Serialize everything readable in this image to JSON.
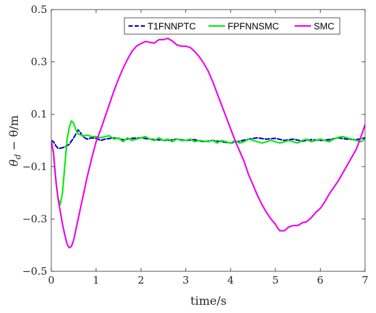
{
  "chart_data": {
    "type": "line",
    "title": "",
    "xlabel": "time/s",
    "ylabel_parts": [
      "θ",
      "d",
      " − θ/m"
    ],
    "xlim": [
      0,
      7
    ],
    "ylim": [
      -0.5,
      0.5
    ],
    "xticks": [
      0,
      1,
      2,
      3,
      4,
      5,
      6,
      7
    ],
    "xtick_labels": [
      "0",
      "1",
      "2",
      "3",
      "4",
      "5",
      "6",
      "7"
    ],
    "yticks": [
      -0.5,
      -0.3,
      -0.1,
      0.1,
      0.3,
      0.5
    ],
    "ytick_labels": [
      "−0.5",
      "−0.3",
      "−0.1",
      "0.1",
      "0.3",
      "0.5"
    ],
    "grid": false,
    "legend_position": "top-right",
    "series": [
      {
        "name": "T1FNNPTC",
        "color": "#0000cc",
        "style": "dashed",
        "points": [
          [
            0,
            0
          ],
          [
            0.05,
            -0.005
          ],
          [
            0.1,
            -0.02
          ],
          [
            0.15,
            -0.03
          ],
          [
            0.2,
            -0.03
          ],
          [
            0.3,
            -0.025
          ],
          [
            0.4,
            -0.015
          ],
          [
            0.5,
            0.01
          ],
          [
            0.6,
            0.04
          ],
          [
            0.65,
            0.03
          ],
          [
            0.7,
            0.015
          ],
          [
            0.8,
            0.005
          ],
          [
            0.9,
            0.01
          ],
          [
            1.0,
            0.008
          ],
          [
            1.1,
            0.0
          ],
          [
            1.2,
            0.005
          ],
          [
            1.4,
            0.01
          ],
          [
            1.6,
            0.003
          ],
          [
            1.8,
            0.008
          ],
          [
            2.0,
            0.01
          ],
          [
            2.2,
            0.005
          ],
          [
            2.4,
            0.002
          ],
          [
            2.6,
            0.0
          ],
          [
            2.8,
            0.005
          ],
          [
            3.0,
            0.0
          ],
          [
            3.2,
            0.003
          ],
          [
            3.4,
            -0.005
          ],
          [
            3.6,
            0.0
          ],
          [
            3.8,
            -0.005
          ],
          [
            4.0,
            -0.01
          ],
          [
            4.2,
            -0.003
          ],
          [
            4.4,
            0.005
          ],
          [
            4.6,
            0.01
          ],
          [
            4.8,
            0.005
          ],
          [
            5.0,
            0.008
          ],
          [
            5.2,
            0.0
          ],
          [
            5.4,
            0.005
          ],
          [
            5.6,
            -0.003
          ],
          [
            5.8,
            0.003
          ],
          [
            6.0,
            0.0
          ],
          [
            6.2,
            0.003
          ],
          [
            6.4,
            0.01
          ],
          [
            6.6,
            0.005
          ],
          [
            6.8,
            0.003
          ],
          [
            7.0,
            0.01
          ]
        ]
      },
      {
        "name": "FPFNNSMC",
        "color": "#00ee00",
        "style": "solid",
        "points": [
          [
            0,
            0
          ],
          [
            0.05,
            -0.05
          ],
          [
            0.1,
            -0.15
          ],
          [
            0.15,
            -0.22
          ],
          [
            0.2,
            -0.245
          ],
          [
            0.25,
            -0.2
          ],
          [
            0.3,
            -0.1
          ],
          [
            0.35,
            0.0
          ],
          [
            0.4,
            0.05
          ],
          [
            0.45,
            0.075
          ],
          [
            0.5,
            0.065
          ],
          [
            0.55,
            0.04
          ],
          [
            0.6,
            0.025
          ],
          [
            0.7,
            0.018
          ],
          [
            0.8,
            0.02
          ],
          [
            0.9,
            0.015
          ],
          [
            1.0,
            0.015
          ],
          [
            1.1,
            0.01
          ],
          [
            1.2,
            0.015
          ],
          [
            1.3,
            0.018
          ],
          [
            1.4,
            0.005
          ],
          [
            1.5,
            0.01
          ],
          [
            1.6,
            -0.005
          ],
          [
            1.7,
            0.01
          ],
          [
            1.8,
            0.0
          ],
          [
            1.9,
            0.005
          ],
          [
            2.0,
            0.01
          ],
          [
            2.1,
            0.015
          ],
          [
            2.2,
            0.005
          ],
          [
            2.3,
            0.0
          ],
          [
            2.4,
            0.01
          ],
          [
            2.5,
            0.0
          ],
          [
            2.6,
            0.005
          ],
          [
            2.7,
            -0.005
          ],
          [
            2.8,
            0.005
          ],
          [
            2.9,
            0.0
          ],
          [
            3.0,
            0.0
          ],
          [
            3.1,
            0.005
          ],
          [
            3.2,
            -0.005
          ],
          [
            3.3,
            0.0
          ],
          [
            3.4,
            -0.002
          ],
          [
            3.5,
            -0.005
          ],
          [
            3.6,
            0.0
          ],
          [
            3.7,
            -0.01
          ],
          [
            3.8,
            0.0
          ],
          [
            3.9,
            -0.005
          ],
          [
            4.0,
            -0.01
          ],
          [
            4.1,
            0.0
          ],
          [
            4.2,
            -0.01
          ],
          [
            4.3,
            -0.005
          ],
          [
            4.4,
            0.005
          ],
          [
            4.5,
            0.0
          ],
          [
            4.6,
            -0.005
          ],
          [
            4.7,
            -0.01
          ],
          [
            4.8,
            -0.005
          ],
          [
            4.9,
            0.0
          ],
          [
            5.0,
            -0.005
          ],
          [
            5.1,
            -0.01
          ],
          [
            5.2,
            -0.005
          ],
          [
            5.3,
            0.0
          ],
          [
            5.4,
            -0.005
          ],
          [
            5.5,
            -0.01
          ],
          [
            5.6,
            0.0
          ],
          [
            5.7,
            0.005
          ],
          [
            5.8,
            -0.005
          ],
          [
            5.9,
            0.0
          ],
          [
            6.0,
            0.005
          ],
          [
            6.1,
            0.0
          ],
          [
            6.2,
            -0.005
          ],
          [
            6.3,
            0.005
          ],
          [
            6.4,
            0.012
          ],
          [
            6.5,
            0.015
          ],
          [
            6.6,
            0.01
          ],
          [
            6.7,
            0.005
          ],
          [
            6.8,
            0.0
          ],
          [
            6.9,
            -0.005
          ],
          [
            7.0,
            0.005
          ]
        ]
      },
      {
        "name": "SMC",
        "color": "#ee00ee",
        "style": "solid",
        "points": [
          [
            0,
            0
          ],
          [
            0.05,
            -0.05
          ],
          [
            0.1,
            -0.15
          ],
          [
            0.15,
            -0.22
          ],
          [
            0.2,
            -0.27
          ],
          [
            0.25,
            -0.32
          ],
          [
            0.3,
            -0.36
          ],
          [
            0.35,
            -0.395
          ],
          [
            0.4,
            -0.41
          ],
          [
            0.45,
            -0.405
          ],
          [
            0.5,
            -0.38
          ],
          [
            0.6,
            -0.3
          ],
          [
            0.7,
            -0.22
          ],
          [
            0.8,
            -0.14
          ],
          [
            0.9,
            -0.07
          ],
          [
            1.0,
            -0.005
          ],
          [
            1.1,
            0.04
          ],
          [
            1.2,
            0.09
          ],
          [
            1.3,
            0.14
          ],
          [
            1.4,
            0.19
          ],
          [
            1.5,
            0.235
          ],
          [
            1.6,
            0.275
          ],
          [
            1.7,
            0.31
          ],
          [
            1.8,
            0.34
          ],
          [
            1.9,
            0.36
          ],
          [
            2.0,
            0.37
          ],
          [
            2.1,
            0.378
          ],
          [
            2.2,
            0.375
          ],
          [
            2.3,
            0.372
          ],
          [
            2.4,
            0.385
          ],
          [
            2.5,
            0.385
          ],
          [
            2.6,
            0.39
          ],
          [
            2.7,
            0.38
          ],
          [
            2.8,
            0.365
          ],
          [
            2.9,
            0.36
          ],
          [
            3.0,
            0.36
          ],
          [
            3.1,
            0.355
          ],
          [
            3.2,
            0.34
          ],
          [
            3.3,
            0.32
          ],
          [
            3.4,
            0.295
          ],
          [
            3.5,
            0.265
          ],
          [
            3.6,
            0.225
          ],
          [
            3.7,
            0.18
          ],
          [
            3.8,
            0.135
          ],
          [
            3.9,
            0.09
          ],
          [
            4.0,
            0.045
          ],
          [
            4.1,
            0.0
          ],
          [
            4.2,
            -0.04
          ],
          [
            4.3,
            -0.08
          ],
          [
            4.4,
            -0.13
          ],
          [
            4.5,
            -0.17
          ],
          [
            4.6,
            -0.21
          ],
          [
            4.7,
            -0.245
          ],
          [
            4.8,
            -0.275
          ],
          [
            4.9,
            -0.3
          ],
          [
            5.0,
            -0.32
          ],
          [
            5.05,
            -0.335
          ],
          [
            5.1,
            -0.345
          ],
          [
            5.2,
            -0.345
          ],
          [
            5.3,
            -0.33
          ],
          [
            5.4,
            -0.325
          ],
          [
            5.5,
            -0.325
          ],
          [
            5.6,
            -0.315
          ],
          [
            5.7,
            -0.31
          ],
          [
            5.8,
            -0.295
          ],
          [
            5.9,
            -0.275
          ],
          [
            6.0,
            -0.26
          ],
          [
            6.1,
            -0.235
          ],
          [
            6.2,
            -0.205
          ],
          [
            6.3,
            -0.18
          ],
          [
            6.4,
            -0.155
          ],
          [
            6.5,
            -0.125
          ],
          [
            6.6,
            -0.095
          ],
          [
            6.7,
            -0.065
          ],
          [
            6.8,
            -0.035
          ],
          [
            6.9,
            0.01
          ],
          [
            7.0,
            0.06
          ]
        ]
      }
    ]
  }
}
